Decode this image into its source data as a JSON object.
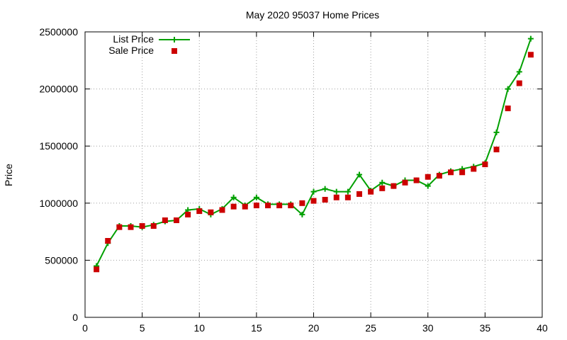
{
  "chart_data": {
    "type": "line",
    "title": "May 2020 95037 Home Prices",
    "xlabel": "",
    "ylabel": "Price",
    "xlim": [
      0,
      40
    ],
    "ylim": [
      0,
      2500000
    ],
    "xticks": [
      0,
      5,
      10,
      15,
      20,
      25,
      30,
      35,
      40
    ],
    "yticks": [
      0,
      500000,
      1000000,
      1500000,
      2000000,
      2500000
    ],
    "xtick_labels": [
      "0",
      "5",
      "10",
      "15",
      "20",
      "25",
      "30",
      "35",
      "40"
    ],
    "ytick_labels": [
      "0",
      "500000",
      "1000000",
      "1500000",
      "2000000",
      "2500000"
    ],
    "grid": true,
    "legend_position": "top-left",
    "series": [
      {
        "name": "List Price",
        "style": "line-with-plus-markers",
        "color": "#00a000",
        "x": [
          1,
          2,
          3,
          4,
          5,
          6,
          7,
          8,
          9,
          10,
          11,
          12,
          13,
          14,
          15,
          16,
          17,
          18,
          19,
          20,
          21,
          22,
          23,
          24,
          25,
          26,
          27,
          28,
          29,
          30,
          31,
          32,
          33,
          34,
          35,
          36,
          37,
          38,
          39
        ],
        "values": [
          450000,
          650000,
          800000,
          800000,
          790000,
          810000,
          840000,
          850000,
          940000,
          950000,
          900000,
          950000,
          1050000,
          980000,
          1050000,
          990000,
          990000,
          990000,
          900000,
          1100000,
          1125000,
          1100000,
          1100000,
          1250000,
          1110000,
          1180000,
          1150000,
          1200000,
          1200000,
          1150000,
          1250000,
          1280000,
          1300000,
          1320000,
          1350000,
          1620000,
          2000000,
          2150000,
          2440000
        ]
      },
      {
        "name": "Sale Price",
        "style": "square-markers",
        "color": "#cc0000",
        "x": [
          1,
          2,
          3,
          4,
          5,
          6,
          7,
          8,
          9,
          10,
          11,
          12,
          13,
          14,
          15,
          16,
          17,
          18,
          19,
          20,
          21,
          22,
          23,
          24,
          25,
          26,
          27,
          28,
          29,
          30,
          31,
          32,
          33,
          34,
          35,
          36,
          37,
          38,
          39
        ],
        "values": [
          420000,
          670000,
          790000,
          790000,
          800000,
          800000,
          850000,
          850000,
          900000,
          930000,
          920000,
          940000,
          970000,
          970000,
          980000,
          980000,
          980000,
          980000,
          1000000,
          1020000,
          1030000,
          1050000,
          1050000,
          1080000,
          1100000,
          1130000,
          1150000,
          1180000,
          1200000,
          1230000,
          1240000,
          1270000,
          1270000,
          1300000,
          1340000,
          1470000,
          1830000,
          2050000,
          2300000
        ]
      }
    ]
  }
}
